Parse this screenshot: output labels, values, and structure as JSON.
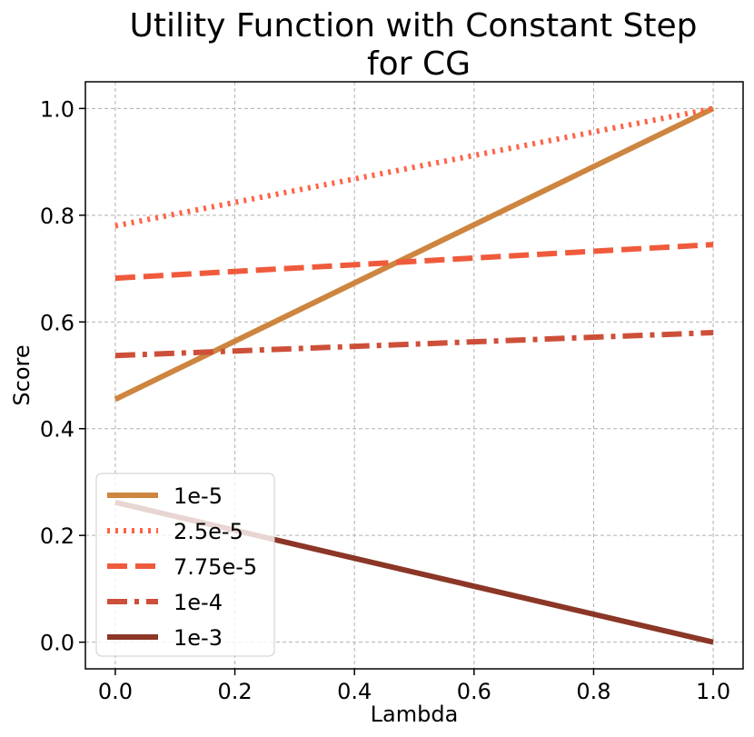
{
  "chart_data": {
    "type": "line",
    "title_lines": [
      "Utility Function with Constant Step",
      "for CG"
    ],
    "xlabel": "Lambda",
    "ylabel": "Score",
    "xlim": [
      -0.05,
      1.05
    ],
    "ylim": [
      -0.05,
      1.05
    ],
    "xticks": [
      "0.0",
      "0.2",
      "0.4",
      "0.6",
      "0.8",
      "1.0"
    ],
    "yticks": [
      "0.0",
      "0.2",
      "0.4",
      "0.6",
      "0.8",
      "1.0"
    ],
    "grid": true,
    "legend_position": "lower-left",
    "series": [
      {
        "name": "1e-5",
        "x": [
          0.0,
          1.0
        ],
        "y": [
          0.455,
          1.0
        ],
        "color": "#cd853f",
        "dash": "solid"
      },
      {
        "name": "2.5e-5",
        "x": [
          0.0,
          1.0
        ],
        "y": [
          0.78,
          1.0
        ],
        "color": "#ff6347",
        "dash": "dotted"
      },
      {
        "name": "7.75e-5",
        "x": [
          0.0,
          1.0
        ],
        "y": [
          0.682,
          0.745
        ],
        "color": "#f05a3c",
        "dash": "dashed"
      },
      {
        "name": "1e-4",
        "x": [
          0.0,
          1.0
        ],
        "y": [
          0.537,
          0.58
        ],
        "color": "#cd4f39",
        "dash": "dashdot"
      },
      {
        "name": "1e-3",
        "x": [
          0.0,
          1.0
        ],
        "y": [
          0.262,
          0.0
        ],
        "color": "#8b3626",
        "dash": "solid"
      }
    ]
  }
}
